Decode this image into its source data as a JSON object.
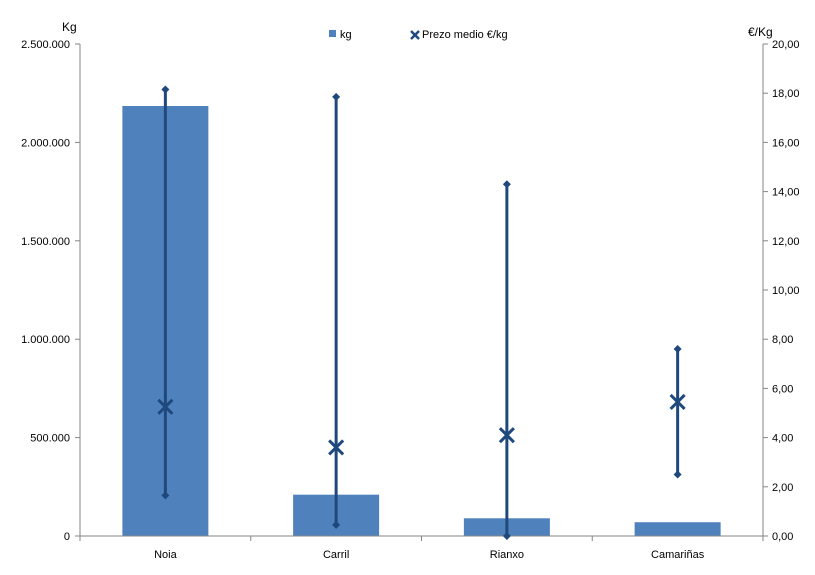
{
  "chart_data": {
    "type": "bar",
    "categories": [
      "Noia",
      "Carril",
      "Rianxo",
      "Camariñas"
    ],
    "series": [
      {
        "name": "kg",
        "axis": "left",
        "values": [
          2185000,
          210000,
          90000,
          70000
        ]
      },
      {
        "name": "Prezo medio €/kg",
        "axis": "right",
        "type": "range-marker",
        "values": [
          5.25,
          3.6,
          4.1,
          5.45
        ],
        "high": [
          18.15,
          17.85,
          14.3,
          7.6
        ],
        "low": [
          1.65,
          0.45,
          0.0,
          2.5
        ]
      }
    ],
    "y_left": {
      "label": "Kg",
      "ylim": [
        0,
        2500000
      ],
      "ticks": [
        "0",
        "500.000",
        "1.000.000",
        "1.500.000",
        "2.000.000",
        "2.500.000"
      ]
    },
    "y_right": {
      "label": "€/Kg",
      "ylim": [
        0,
        20
      ],
      "ticks": [
        "0,00",
        "2,00",
        "4,00",
        "6,00",
        "8,00",
        "10,00",
        "12,00",
        "14,00",
        "16,00",
        "18,00",
        "20,00"
      ]
    },
    "legend_position": "top-center",
    "colors": {
      "bar": "#4f81bd",
      "marker": "#1f497d"
    },
    "grid": false
  }
}
